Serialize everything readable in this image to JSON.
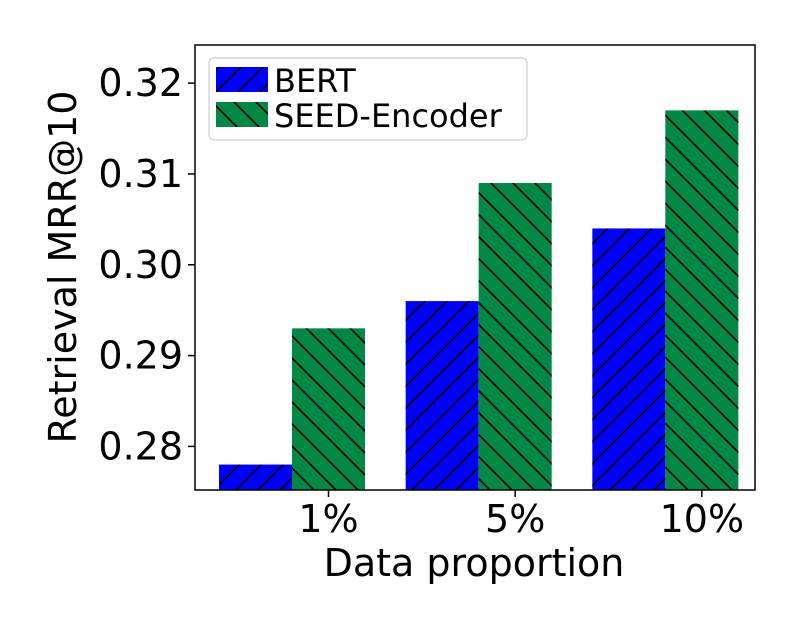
{
  "chart_data": {
    "type": "bar",
    "title": "",
    "xlabel": "Data proportion",
    "ylabel": "Retrieval MRR@10",
    "categories": [
      "1%",
      "5%",
      "10%"
    ],
    "series": [
      {
        "name": "BERT",
        "values": [
          0.278,
          0.296,
          0.304
        ],
        "color": "#0000ff",
        "hatch": "/"
      },
      {
        "name": "SEED-Encoder",
        "values": [
          0.293,
          0.309,
          0.317
        ],
        "color": "#008844",
        "hatch": "\\"
      }
    ],
    "yticks": [
      "0.28",
      "0.29",
      "0.30",
      "0.31",
      "0.32"
    ],
    "ylim": [
      0.2752,
      0.3242
    ],
    "grid": false,
    "legend_position": "top-left"
  }
}
